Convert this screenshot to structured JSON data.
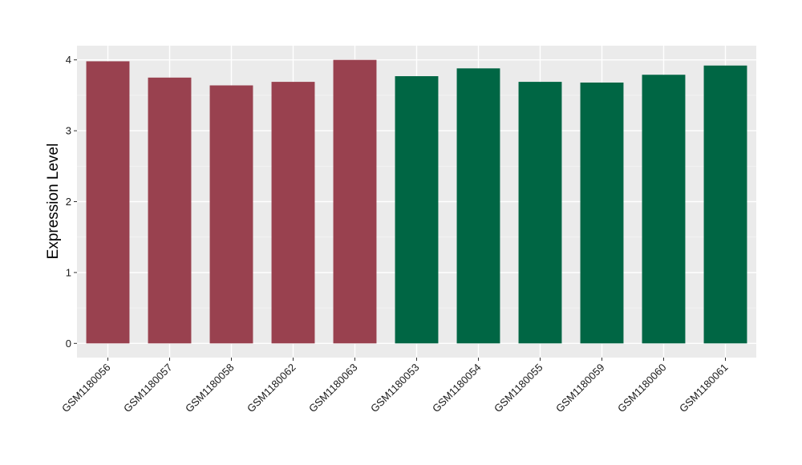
{
  "chart_data": {
    "type": "bar",
    "title": "",
    "xlabel": "",
    "ylabel": "Expression Level",
    "ylim": [
      -0.2,
      4.2
    ],
    "yticks": [
      0,
      1,
      2,
      3,
      4
    ],
    "grid": true,
    "legend": "none",
    "background_color": "#ebebeb",
    "categories": [
      "GSM1180056",
      "GSM1180057",
      "GSM1180058",
      "GSM1180062",
      "GSM1180063",
      "GSM1180053",
      "GSM1180054",
      "GSM1180055",
      "GSM1180059",
      "GSM1180060",
      "GSM1180061"
    ],
    "values": [
      3.98,
      3.75,
      3.64,
      3.69,
      4.0,
      3.77,
      3.88,
      3.69,
      3.68,
      3.79,
      3.92
    ],
    "bar_colors": [
      "#99414f",
      "#99414f",
      "#99414f",
      "#99414f",
      "#99414f",
      "#006644",
      "#006644",
      "#006644",
      "#006644",
      "#006644",
      "#006644"
    ]
  }
}
